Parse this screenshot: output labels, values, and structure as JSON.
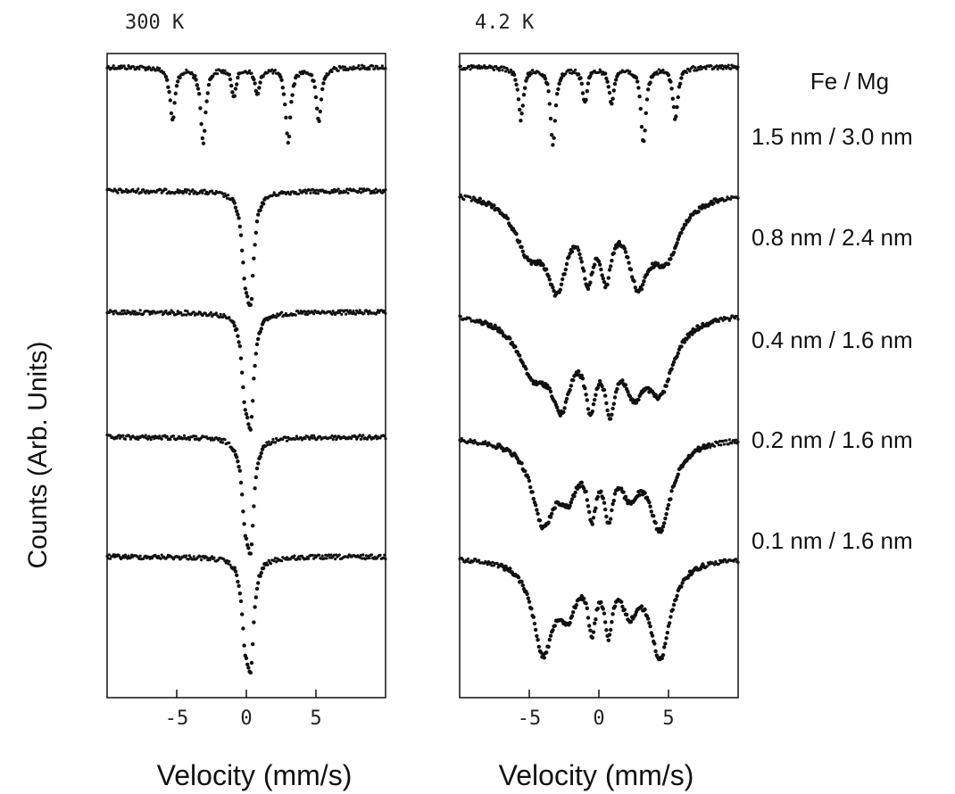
{
  "chart_data": {
    "type": "scatter",
    "ylabel": "Counts  (Arb. Units)",
    "legend_title": "Fe / Mg",
    "sample_labels": [
      "1.5 nm / 3.0 nm",
      "0.8 nm / 2.4 nm",
      "0.4 nm / 1.6 nm",
      "0.2 nm / 1.6 nm",
      "0.1 nm / 1.6 nm"
    ],
    "panels": [
      {
        "title": "300 K",
        "xlabel": "Velocity (mm/s)",
        "xlim": [
          -10,
          10
        ],
        "xticks": [
          -5,
          0,
          5
        ],
        "spectra": [
          {
            "sample": "1.5 nm / 3.0 nm",
            "baseline": 1.0,
            "lines": [
              {
                "v": -5.3,
                "depth": 0.5,
                "width": 0.22
              },
              {
                "v": -3.1,
                "depth": 0.7,
                "width": 0.22
              },
              {
                "v": -0.9,
                "depth": 0.25,
                "width": 0.22
              },
              {
                "v": 0.8,
                "depth": 0.25,
                "width": 0.22
              },
              {
                "v": 3.0,
                "depth": 0.7,
                "width": 0.22
              },
              {
                "v": 5.2,
                "depth": 0.5,
                "width": 0.22
              }
            ]
          },
          {
            "sample": "0.8 nm / 2.4 nm",
            "baseline": 1.0,
            "lines": [
              {
                "v": -0.1,
                "depth": 0.55,
                "width": 0.28
              },
              {
                "v": 0.3,
                "depth": 0.85,
                "width": 0.28
              }
            ]
          },
          {
            "sample": "0.4 nm / 1.6 nm",
            "baseline": 1.0,
            "lines": [
              {
                "v": -0.1,
                "depth": 0.55,
                "width": 0.28
              },
              {
                "v": 0.3,
                "depth": 0.85,
                "width": 0.28
              }
            ]
          },
          {
            "sample": "0.2 nm / 1.6 nm",
            "baseline": 1.0,
            "lines": [
              {
                "v": -0.1,
                "depth": 0.55,
                "width": 0.28
              },
              {
                "v": 0.3,
                "depth": 0.85,
                "width": 0.28
              }
            ]
          },
          {
            "sample": "0.1 nm / 1.6 nm",
            "baseline": 1.0,
            "lines": [
              {
                "v": -0.1,
                "depth": 0.55,
                "width": 0.28
              },
              {
                "v": 0.3,
                "depth": 0.85,
                "width": 0.28
              }
            ]
          }
        ]
      },
      {
        "title": "4.2 K",
        "xlabel": "Velocity (mm/s)",
        "xlim": [
          -10,
          10
        ],
        "xticks": [
          -5,
          0,
          5
        ],
        "spectra": [
          {
            "sample": "1.5 nm / 3.0 nm",
            "baseline": 1.0,
            "lines": [
              {
                "v": -5.6,
                "depth": 0.6,
                "width": 0.22
              },
              {
                "v": -3.3,
                "depth": 0.9,
                "width": 0.22
              },
              {
                "v": -1.0,
                "depth": 0.4,
                "width": 0.22
              },
              {
                "v": 0.9,
                "depth": 0.4,
                "width": 0.22
              },
              {
                "v": 3.2,
                "depth": 0.9,
                "width": 0.22
              },
              {
                "v": 5.5,
                "depth": 0.6,
                "width": 0.22
              }
            ]
          },
          {
            "sample": "0.8 nm / 2.4 nm",
            "baseline": 1.0,
            "lines": [
              {
                "v": -5.0,
                "depth": 0.5,
                "width": 1.3
              },
              {
                "v": -3.0,
                "depth": 0.75,
                "width": 0.9
              },
              {
                "v": -0.8,
                "depth": 0.6,
                "width": 0.5
              },
              {
                "v": 0.5,
                "depth": 0.6,
                "width": 0.5
              },
              {
                "v": 2.8,
                "depth": 0.7,
                "width": 0.9
              },
              {
                "v": 4.8,
                "depth": 0.55,
                "width": 1.3
              }
            ]
          },
          {
            "sample": "0.4 nm / 1.6 nm",
            "baseline": 1.0,
            "lines": [
              {
                "v": -4.7,
                "depth": 0.5,
                "width": 1.4
              },
              {
                "v": -2.7,
                "depth": 0.7,
                "width": 0.9
              },
              {
                "v": -0.6,
                "depth": 0.65,
                "width": 0.5
              },
              {
                "v": 0.8,
                "depth": 0.65,
                "width": 0.5
              },
              {
                "v": 2.5,
                "depth": 0.55,
                "width": 0.9
              },
              {
                "v": 4.4,
                "depth": 0.65,
                "width": 1.2
              }
            ]
          },
          {
            "sample": "0.2 nm / 1.6 nm",
            "baseline": 1.0,
            "lines": [
              {
                "v": -4.0,
                "depth": 0.75,
                "width": 1.0
              },
              {
                "v": -2.2,
                "depth": 0.4,
                "width": 0.8
              },
              {
                "v": -0.5,
                "depth": 0.55,
                "width": 0.4
              },
              {
                "v": 0.7,
                "depth": 0.55,
                "width": 0.4
              },
              {
                "v": 2.2,
                "depth": 0.4,
                "width": 0.8
              },
              {
                "v": 4.4,
                "depth": 0.8,
                "width": 1.0
              }
            ]
          },
          {
            "sample": "0.1 nm / 1.6 nm",
            "baseline": 1.0,
            "lines": [
              {
                "v": -4.0,
                "depth": 0.85,
                "width": 0.9
              },
              {
                "v": -2.2,
                "depth": 0.4,
                "width": 0.7
              },
              {
                "v": -0.5,
                "depth": 0.55,
                "width": 0.35
              },
              {
                "v": 0.7,
                "depth": 0.55,
                "width": 0.35
              },
              {
                "v": 2.2,
                "depth": 0.4,
                "width": 0.7
              },
              {
                "v": 4.4,
                "depth": 0.9,
                "width": 0.9
              }
            ]
          }
        ]
      }
    ]
  }
}
